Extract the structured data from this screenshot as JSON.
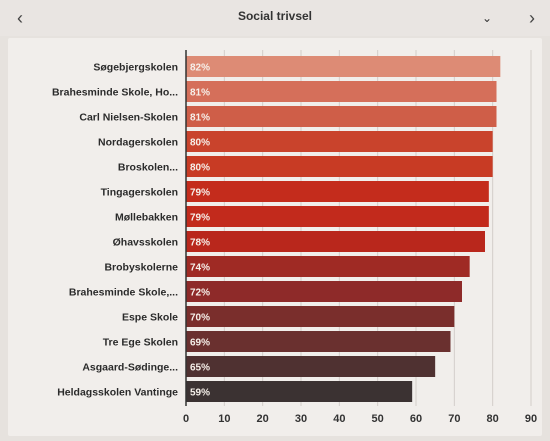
{
  "header": {
    "title": "Social trivsel",
    "prev_icon": "chevron-left-icon",
    "next_icon": "chevron-right-icon",
    "dropdown_icon": "chevron-down-icon"
  },
  "chart_data": {
    "type": "bar",
    "orientation": "horizontal",
    "title": "Social trivsel",
    "categories": [
      "Søgebjergskolen",
      "Brahesminde Skole, Ho...",
      "Carl Nielsen-Skolen",
      "Nordagerskolen",
      "Broskolen...",
      "Tingagerskolen",
      "Møllebakken",
      "Øhavsskolen",
      "Brobyskolerne",
      "Brahesminde Skole,...",
      "Espe Skole",
      "Tre Ege Skolen",
      "Asgaard-Sødinge...",
      "Heldagsskolen Vantinge"
    ],
    "values": [
      82,
      81,
      81,
      80,
      80,
      79,
      79,
      78,
      74,
      72,
      70,
      69,
      65,
      59
    ],
    "value_labels": [
      "82%",
      "81%",
      "81%",
      "80%",
      "80%",
      "79%",
      "79%",
      "78%",
      "74%",
      "72%",
      "70%",
      "69%",
      "65%",
      "59%"
    ],
    "colors": [
      "#dd8b75",
      "#d56f5a",
      "#cf5e48",
      "#c9432c",
      "#c83b24",
      "#c42c1c",
      "#c22a1c",
      "#b9271c",
      "#9f2a24",
      "#8e2a29",
      "#7a2e2c",
      "#6a302f",
      "#4f3131",
      "#3b3232"
    ],
    "xlim": [
      0,
      90
    ],
    "xticks": [
      0,
      10,
      20,
      30,
      40,
      50,
      60,
      70,
      80,
      90
    ],
    "grid": true
  }
}
